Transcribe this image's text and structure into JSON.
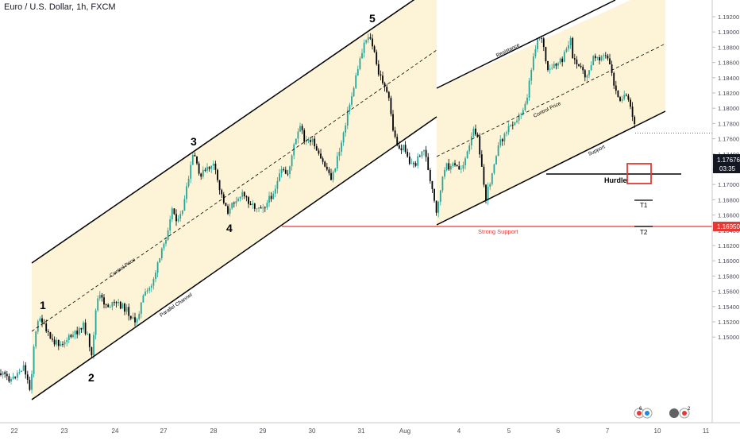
{
  "header": {
    "symbol_title": "Euro / U.S. Dollar, 1h, FXCM"
  },
  "colors": {
    "up": "#26a69a",
    "down": "#000000",
    "channel_fill": "#fdf3d7",
    "red": "#e53935",
    "axis_text": "#4a4f5a",
    "price_badge": "#131722",
    "support_badge": "#e53935"
  },
  "chart_data": {
    "type": "candlestick",
    "title": "Euro / U.S. Dollar, 1h, FXCM",
    "x_ticks": [
      "22",
      "23",
      "24",
      "27",
      "28",
      "29",
      "30",
      "31",
      "Aug",
      "4",
      "5",
      "6",
      "7",
      "10",
      "11"
    ],
    "y_ticks": [
      "1.19200",
      "1.19000",
      "1.18800",
      "1.18600",
      "1.18400",
      "1.18200",
      "1.18000",
      "1.17800",
      "1.17600",
      "1.17400",
      "1.17200",
      "1.17000",
      "1.16800",
      "1.16600",
      "1.16400",
      "1.16200",
      "1.16000",
      "1.15800",
      "1.15600",
      "1.15400",
      "1.15200",
      "1.15000"
    ],
    "ylim": [
      1.1493,
      1.1932
    ],
    "last_price": {
      "value": "1.17676",
      "timer": "03:35"
    },
    "strong_support_price": "1.16950",
    "wave_labels": [
      "1",
      "2",
      "3",
      "4",
      "5"
    ],
    "annotations": {
      "control_price_1": "Control Price",
      "parallel_channel": "Parallel Channel",
      "resistance": "Resistance",
      "control_price_2": "Control Price",
      "support": "Support",
      "hurdle": "Hurdle",
      "strong_support": "Strong Support",
      "t1": "T1",
      "t2": "T2"
    },
    "grid": false
  },
  "badges": {
    "b1": "6",
    "b2": "2"
  }
}
